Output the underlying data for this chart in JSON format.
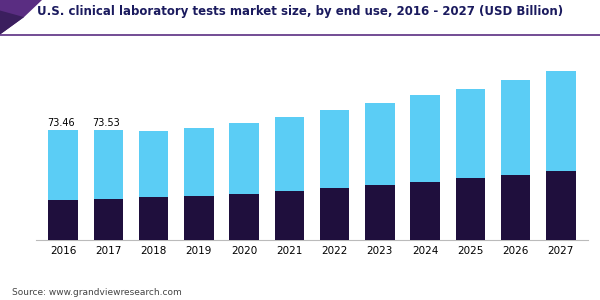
{
  "title": "U.S. clinical laboratory tests market size, by end use, 2016 - 2027 (USD Billion)",
  "years": [
    2016,
    2017,
    2018,
    2019,
    2020,
    2021,
    2022,
    2023,
    2024,
    2025,
    2026,
    2027
  ],
  "primary_care": [
    27.0,
    27.5,
    28.5,
    29.5,
    31.0,
    33.0,
    35.0,
    37.0,
    39.0,
    41.5,
    43.5,
    46.0
  ],
  "central_labs": [
    46.46,
    46.03,
    44.5,
    45.5,
    47.0,
    49.0,
    52.0,
    54.5,
    57.5,
    59.5,
    63.5,
    67.0
  ],
  "total_labels": {
    "2016": "73.46",
    "2017": "73.53"
  },
  "color_primary": "#1f0f3d",
  "color_central": "#5bcdf5",
  "source_text": "Source: www.grandviewresearch.com",
  "bar_width": 0.65,
  "ylim_max": 120,
  "title_color": "#1a1a5e",
  "corner_color1": "#5a2d82",
  "corner_color2": "#3b1f5e",
  "divider_color": "#5a2d82"
}
